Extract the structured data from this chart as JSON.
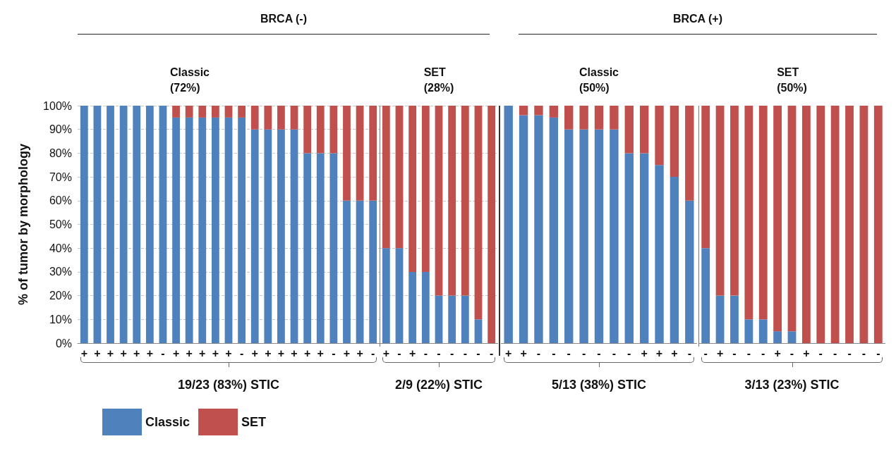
{
  "chart_data": [
    {
      "type": "bar",
      "stacked": true,
      "title": "BRCA (-)",
      "subtitle": "Classic\n(72%)",
      "ylabel": "% of tumor by morphology",
      "categories": [
        "+",
        "+",
        "+",
        "+",
        "+",
        "+",
        "-",
        "+",
        "+",
        "+",
        "+",
        "+",
        "-",
        "+",
        "+",
        "+",
        "+",
        "+",
        "+",
        "-",
        "+",
        "+",
        "-"
      ],
      "series": [
        {
          "name": "Classic",
          "color": "#4f81bd",
          "values": [
            100,
            100,
            100,
            100,
            100,
            100,
            100,
            95,
            95,
            95,
            95,
            95,
            95,
            90,
            90,
            90,
            90,
            80,
            80,
            80,
            60,
            60,
            60
          ]
        },
        {
          "name": "SET",
          "color": "#c0504d",
          "values": [
            0,
            0,
            0,
            0,
            0,
            0,
            0,
            5,
            5,
            5,
            5,
            5,
            5,
            10,
            10,
            10,
            10,
            20,
            20,
            20,
            40,
            40,
            40
          ]
        }
      ],
      "ylim": [
        0,
        100
      ],
      "yticks": [
        {
          "value": 0,
          "label": "0%"
        },
        {
          "value": 10,
          "label": "10%"
        },
        {
          "value": 20,
          "label": "20%"
        },
        {
          "value": 30,
          "label": "30%"
        },
        {
          "value": 40,
          "label": "40%"
        },
        {
          "value": 50,
          "label": "50%"
        },
        {
          "value": 60,
          "label": "60%"
        },
        {
          "value": 70,
          "label": "70%"
        },
        {
          "value": 80,
          "label": "80%"
        },
        {
          "value": 90,
          "label": "90%"
        },
        {
          "value": 100,
          "label": "100%"
        }
      ],
      "grid": "y",
      "legend": "bottom left",
      "annotations": [
        "19/23 (83%) STIC"
      ]
    },
    {
      "type": "bar",
      "stacked": true,
      "subtitle": "SET\n(28%)",
      "categories": [
        "+",
        "-",
        "+",
        "-",
        "-",
        "-",
        "-",
        "-",
        "-"
      ],
      "series": [
        {
          "color": "#4f81bd",
          "values": [
            40,
            40,
            30,
            30,
            20,
            20,
            20,
            10,
            0
          ]
        },
        {
          "color": "#c0504d",
          "values": [
            60,
            60,
            70,
            70,
            80,
            80,
            80,
            90,
            100
          ]
        }
      ],
      "ylim": [
        0,
        100
      ],
      "tick_labels": "x",
      "grid": "y",
      "annotations": [
        "2/9 (22%) STIC"
      ]
    },
    {
      "type": "bar",
      "stacked": true,
      "title": "BRCA (+)",
      "subtitle": "Classic\n(50%)",
      "categories": [
        "+",
        "+",
        "-",
        "-",
        "-",
        "-",
        "-",
        "-",
        "-",
        "+",
        "+",
        "+",
        "-"
      ],
      "series": [
        {
          "color": "#4f81bd",
          "values": [
            100,
            96,
            96,
            95,
            90,
            90,
            90,
            90,
            80,
            80,
            75,
            70,
            60
          ]
        },
        {
          "color": "#c0504d",
          "values": [
            0,
            4,
            4,
            5,
            10,
            10,
            10,
            10,
            20,
            20,
            25,
            30,
            40
          ]
        }
      ],
      "ylim": [
        0,
        100
      ],
      "tick_labels": "x",
      "annotations": [
        "5/13 (38%) STIC"
      ]
    },
    {
      "type": "bar",
      "stacked": true,
      "subtitle": "SET\n(50%)",
      "categories": [
        "-",
        "+",
        "-",
        "-",
        "-",
        "+",
        "-",
        "+",
        "-",
        "-",
        "-",
        "-",
        "-"
      ],
      "series": [
        {
          "color": "#4f81bd",
          "values": [
            40,
            20,
            20,
            10,
            10,
            5,
            5,
            0,
            0,
            0,
            0,
            0,
            0
          ]
        },
        {
          "color": "#c0504d",
          "values": [
            60,
            80,
            80,
            90,
            90,
            95,
            95,
            100,
            100,
            100,
            100,
            100,
            100
          ]
        }
      ],
      "ylim": [
        0,
        100
      ],
      "tick_labels": "x",
      "annotations": [
        "3/13 (23%) STIC"
      ]
    }
  ]
}
